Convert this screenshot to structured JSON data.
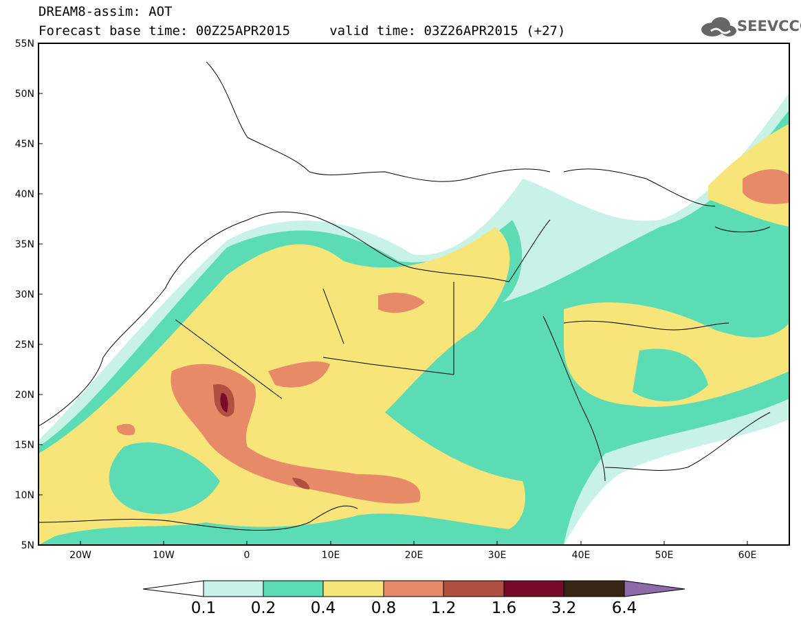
{
  "header": {
    "line1": "DREAM8-assim: AOT",
    "line2": "Forecast base time: 00Z25APR2015     valid time: 03Z26APR2015 (+27)"
  },
  "logo": {
    "text": "SEEVCCC",
    "icon": "cloud-icon"
  },
  "map": {
    "type": "dust-aot-forecast",
    "lon_range": [
      -25,
      65
    ],
    "lat_range": [
      5,
      55
    ],
    "x_ticks": [
      "20W",
      "10W",
      "0",
      "10E",
      "20E",
      "30E",
      "40E",
      "50E",
      "60E"
    ],
    "y_ticks": [
      "55N",
      "50N",
      "45N",
      "40N",
      "35N",
      "30N",
      "25N",
      "20N",
      "15N",
      "10N",
      "5N"
    ]
  },
  "colorbar": {
    "labels": [
      "0.1",
      "0.2",
      "0.4",
      "0.8",
      "1.2",
      "1.6",
      "3.2",
      "6.4"
    ],
    "colors": [
      "#ffffff",
      "#c8f2e8",
      "#5cdcb4",
      "#f8e57a",
      "#e68a68",
      "#b05040",
      "#7a0a2a",
      "#3a2616",
      "#8e6aa8"
    ]
  }
}
